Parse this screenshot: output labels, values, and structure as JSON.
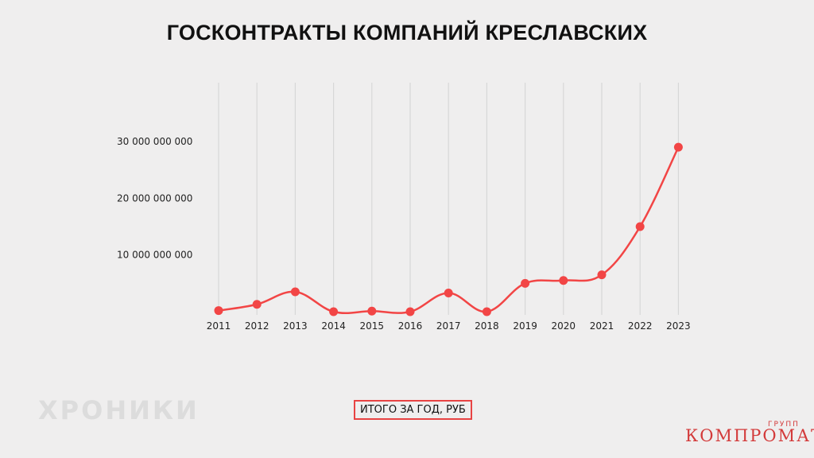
{
  "chart_data": {
    "type": "line",
    "title": "ГОСКОНТРАКТЫ КОМПАНИЙ КРЕСЛАВСКИХ",
    "xlabel": "",
    "ylabel": "",
    "categories": [
      "2011",
      "2012",
      "2013",
      "2014",
      "2015",
      "2016",
      "2017",
      "2018",
      "2019",
      "2020",
      "2021",
      "2022",
      "2023"
    ],
    "series": [
      {
        "name": "ИТОГО ЗА ГОД, РУБ",
        "values": [
          200000000,
          1300000000,
          3500000000,
          0,
          100000000,
          0,
          3300000000,
          0,
          5000000000,
          5500000000,
          6500000000,
          15000000000,
          29000000000
        ],
        "color": "#f24545"
      }
    ],
    "yticks": [
      {
        "value": 10000000000,
        "label": "10 000 000 000"
      },
      {
        "value": 20000000000,
        "label": "20 000 000 000"
      },
      {
        "value": 30000000000,
        "label": "30 000 000 000"
      }
    ],
    "ylim": [
      0,
      30000000000
    ],
    "grid": "vertical",
    "legend": "bottom-center"
  },
  "branding": {
    "left": "ХРОНИКИ",
    "right": "КОМПРОМАТ",
    "right_small": "ГРУПП"
  }
}
